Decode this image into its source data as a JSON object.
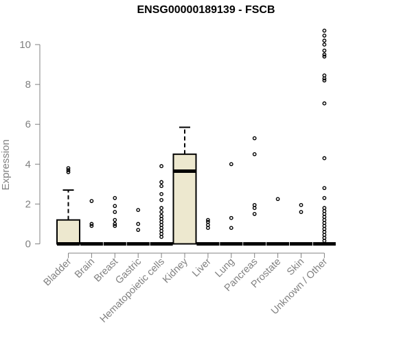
{
  "chart_data": {
    "type": "boxplot",
    "title": "ENSG00000189139 - FSCB",
    "xlabel": "",
    "ylabel": "Expression",
    "ylim": [
      0,
      10.8
    ],
    "yticks": [
      0,
      2,
      4,
      6,
      8,
      10
    ],
    "categories": [
      "Bladder",
      "Brain",
      "Breast",
      "Gastric",
      "Hematopoietic cells",
      "Kidney",
      "Liver",
      "Lung",
      "Pancreas",
      "Prostate",
      "Skin",
      "Unknown / Other"
    ],
    "boxes": [
      {
        "category": "Bladder",
        "q1": 0,
        "median": 0,
        "q3": 1.2,
        "whisker_low": 0,
        "whisker_high": 2.7,
        "outliers": [
          3.6,
          3.7,
          3.8
        ]
      },
      {
        "category": "Brain",
        "q1": 0,
        "median": 0,
        "q3": 0,
        "whisker_low": 0,
        "whisker_high": 0,
        "outliers": [
          0.9,
          1.0,
          2.15
        ]
      },
      {
        "category": "Breast",
        "q1": 0,
        "median": 0,
        "q3": 0,
        "whisker_low": 0,
        "whisker_high": 0,
        "outliers": [
          0.9,
          1.0,
          1.2,
          1.6,
          1.9,
          2.3
        ]
      },
      {
        "category": "Gastric",
        "q1": 0,
        "median": 0,
        "q3": 0,
        "whisker_low": 0,
        "whisker_high": 0,
        "outliers": [
          0.7,
          1.0,
          1.7
        ]
      },
      {
        "category": "Hematopoietic cells",
        "q1": 0,
        "median": 0,
        "q3": 0,
        "whisker_low": 0,
        "whisker_high": 0,
        "outliers": [
          0.35,
          0.5,
          0.65,
          0.8,
          0.95,
          1.1,
          1.25,
          1.4,
          1.6,
          1.8,
          2.2,
          2.5,
          2.9,
          3.1,
          3.9
        ]
      },
      {
        "category": "Kidney",
        "q1": 0,
        "median": 3.65,
        "q3": 4.5,
        "whisker_low": 0,
        "whisker_high": 5.85,
        "outliers": []
      },
      {
        "category": "Liver",
        "q1": 0,
        "median": 0,
        "q3": 0,
        "whisker_low": 0,
        "whisker_high": 0,
        "outliers": [
          0.8,
          0.95,
          1.1,
          1.2
        ]
      },
      {
        "category": "Lung",
        "q1": 0,
        "median": 0,
        "q3": 0,
        "whisker_low": 0,
        "whisker_high": 0,
        "outliers": [
          0.8,
          1.3,
          4.0
        ]
      },
      {
        "category": "Pancreas",
        "q1": 0,
        "median": 0,
        "q3": 0,
        "whisker_low": 0,
        "whisker_high": 0,
        "outliers": [
          1.5,
          1.8,
          1.95,
          4.5,
          5.3
        ]
      },
      {
        "category": "Prostate",
        "q1": 0,
        "median": 0,
        "q3": 0,
        "whisker_low": 0,
        "whisker_high": 0,
        "outliers": [
          2.25
        ]
      },
      {
        "category": "Skin",
        "q1": 0,
        "median": 0,
        "q3": 0,
        "whisker_low": 0,
        "whisker_high": 0,
        "outliers": [
          1.6,
          1.95
        ]
      },
      {
        "category": "Unknown / Other",
        "q1": 0,
        "median": 0,
        "q3": 0,
        "whisker_low": 0,
        "whisker_high": 0,
        "outliers": [
          0.15,
          0.3,
          0.45,
          0.6,
          0.75,
          0.9,
          1.05,
          1.2,
          1.35,
          1.5,
          1.65,
          1.8,
          2.3,
          2.8,
          4.3,
          7.05,
          8.2,
          8.3,
          8.45,
          9.4,
          9.5,
          9.7,
          10.0,
          10.2,
          10.45,
          10.7
        ]
      }
    ],
    "box_fill": "#ede8cf",
    "box_stroke": "#000000",
    "axis_color": "#808080",
    "grid": false,
    "legend": "none"
  }
}
